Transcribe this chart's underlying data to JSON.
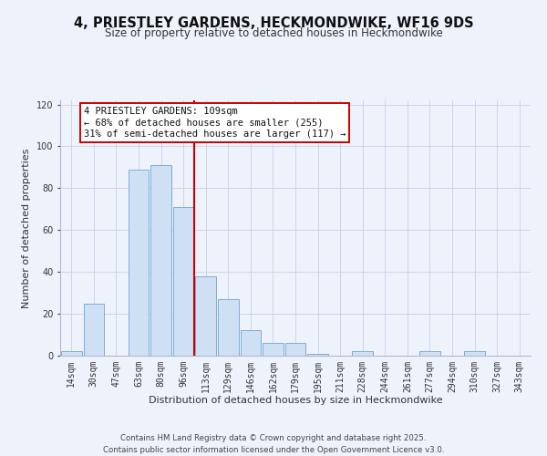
{
  "title": "4, PRIESTLEY GARDENS, HECKMONDWIKE, WF16 9DS",
  "subtitle": "Size of property relative to detached houses in Heckmondwike",
  "xlabel": "Distribution of detached houses by size in Heckmondwike",
  "ylabel": "Number of detached properties",
  "bin_labels": [
    "14sqm",
    "30sqm",
    "47sqm",
    "63sqm",
    "80sqm",
    "96sqm",
    "113sqm",
    "129sqm",
    "146sqm",
    "162sqm",
    "179sqm",
    "195sqm",
    "211sqm",
    "228sqm",
    "244sqm",
    "261sqm",
    "277sqm",
    "294sqm",
    "310sqm",
    "327sqm",
    "343sqm"
  ],
  "bar_values": [
    2,
    25,
    0,
    89,
    91,
    71,
    38,
    27,
    12,
    6,
    6,
    1,
    0,
    2,
    0,
    0,
    2,
    0,
    2,
    0,
    0
  ],
  "bar_color": "#cfe0f5",
  "bar_edge_color": "#7bafd4",
  "vline_x_index": 6,
  "vline_color": "#cc0000",
  "annotation_line1": "4 PRIESTLEY GARDENS: 109sqm",
  "annotation_line2": "← 68% of detached houses are smaller (255)",
  "annotation_line3": "31% of semi-detached houses are larger (117) →",
  "ylim": [
    0,
    122
  ],
  "yticks": [
    0,
    20,
    40,
    60,
    80,
    100,
    120
  ],
  "bg_color": "#eef2fb",
  "plot_bg_color": "#eef2fb",
  "grid_color": "#c8d0e8",
  "footer_text": "Contains HM Land Registry data © Crown copyright and database right 2025.\nContains public sector information licensed under the Open Government Licence v3.0.",
  "title_fontsize": 10.5,
  "subtitle_fontsize": 8.5,
  "axis_label_fontsize": 8,
  "tick_fontsize": 7,
  "annotation_fontsize": 7.5,
  "footer_fontsize": 6.2
}
